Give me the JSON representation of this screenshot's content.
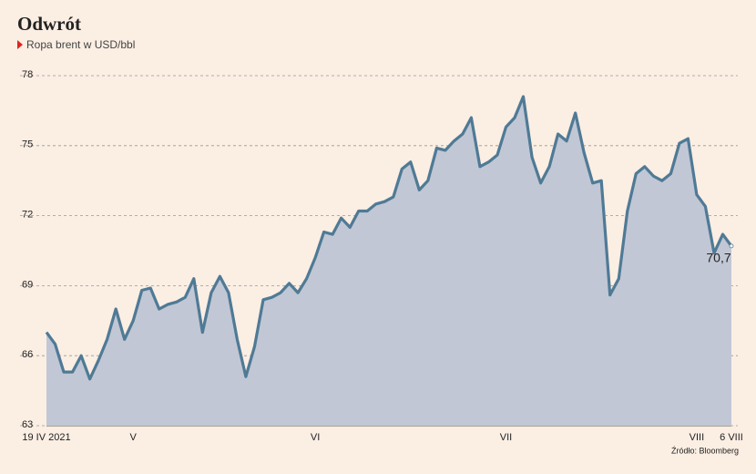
{
  "chart_data": {
    "type": "area-line",
    "title": "Odwrót",
    "subtitle": "Ropa brent w USD/bbl",
    "source": "Źródło: Bloomberg",
    "categories": [
      "19 IV 2021",
      null,
      null,
      null,
      null,
      null,
      null,
      null,
      null,
      null,
      "V",
      null,
      null,
      null,
      null,
      null,
      null,
      null,
      null,
      null,
      null,
      null,
      null,
      null,
      null,
      null,
      null,
      null,
      null,
      null,
      null,
      "VI",
      null,
      null,
      null,
      null,
      null,
      null,
      null,
      null,
      null,
      null,
      null,
      null,
      null,
      null,
      null,
      null,
      null,
      null,
      null,
      null,
      null,
      "VII",
      null,
      null,
      null,
      null,
      null,
      null,
      null,
      null,
      null,
      null,
      null,
      null,
      null,
      null,
      null,
      null,
      null,
      null,
      null,
      null,
      null,
      "VIII",
      null,
      null,
      null,
      "6 VIII"
    ],
    "series": [
      {
        "name": "Ropa brent",
        "color": "#4f7a96",
        "fill": "#c1c7d4",
        "values": [
          67.0,
          66.5,
          65.3,
          65.3,
          66.0,
          65.0,
          65.8,
          66.7,
          68.0,
          66.7,
          67.5,
          68.8,
          68.9,
          68.0,
          68.2,
          68.3,
          68.5,
          69.3,
          67.0,
          68.7,
          69.4,
          68.7,
          66.7,
          65.1,
          66.4,
          68.4,
          68.5,
          68.7,
          69.1,
          68.7,
          69.3,
          70.2,
          71.3,
          71.2,
          71.9,
          71.5,
          72.2,
          72.2,
          72.5,
          72.6,
          72.8,
          74.0,
          74.3,
          73.1,
          73.5,
          74.9,
          74.8,
          75.2,
          75.5,
          76.2,
          74.1,
          74.3,
          74.6,
          75.8,
          76.2,
          77.1,
          74.5,
          73.4,
          74.1,
          75.5,
          75.2,
          76.4,
          74.7,
          73.4,
          73.5,
          68.6,
          69.3,
          72.2,
          73.8,
          74.1,
          73.7,
          73.5,
          73.8,
          75.1,
          75.3,
          72.9,
          72.4,
          70.4,
          71.2,
          70.7
        ],
        "value_labels": [
          null,
          null,
          null,
          null,
          null,
          null,
          null,
          null,
          null,
          null,
          null,
          null,
          null,
          null,
          null,
          null,
          null,
          null,
          null,
          null,
          null,
          null,
          null,
          null,
          null,
          null,
          null,
          null,
          null,
          null,
          null,
          null,
          null,
          null,
          null,
          null,
          null,
          null,
          null,
          null,
          null,
          null,
          null,
          null,
          null,
          null,
          null,
          null,
          null,
          null,
          null,
          null,
          null,
          null,
          null,
          null,
          null,
          null,
          null,
          null,
          null,
          null,
          null,
          null,
          null,
          null,
          null,
          null,
          null,
          null,
          null,
          null,
          null,
          null,
          null,
          null,
          null,
          null,
          null,
          "70,7"
        ]
      }
    ],
    "ylim": [
      63,
      78
    ],
    "yticks": [
      63,
      66,
      69,
      72,
      75,
      78
    ],
    "grid": true
  }
}
